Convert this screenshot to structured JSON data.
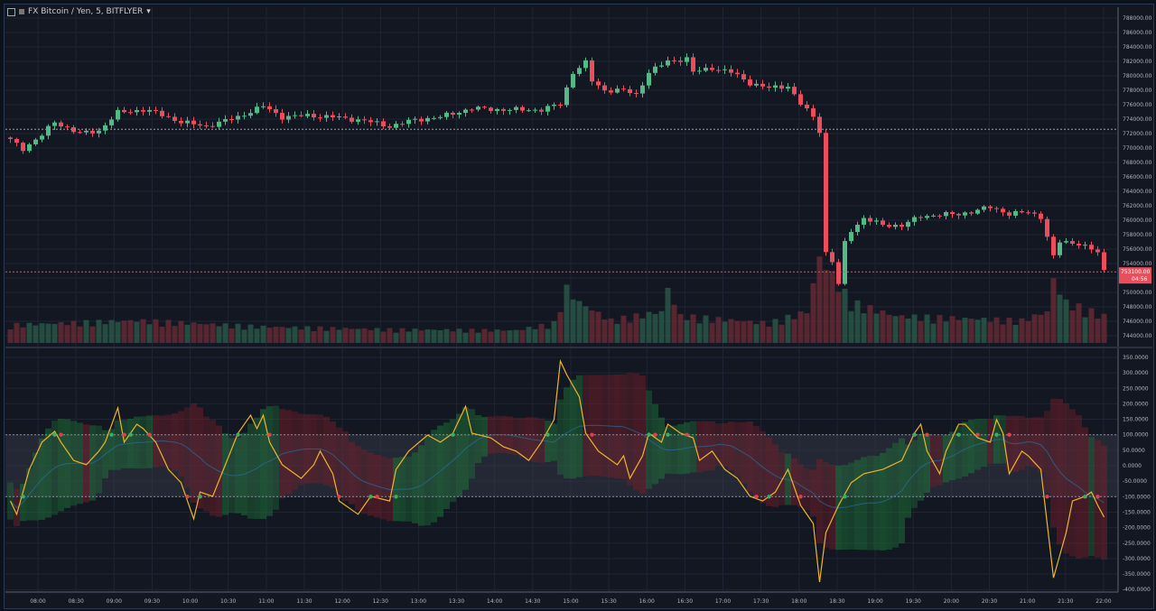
{
  "header": {
    "symbol_title": "FX Bitcoin / Yen, 5, BITFLYER",
    "dropdown_glyph": "▾"
  },
  "price_axis": {
    "labels": [
      "788000.00",
      "786000.00",
      "784000.00",
      "782000.00",
      "780000.00",
      "778000.00",
      "776000.00",
      "774000.00",
      "772000.00",
      "770000.00",
      "768000.00",
      "766000.00",
      "764000.00",
      "762000.00",
      "760000.00",
      "758000.00",
      "756000.00",
      "754000.00",
      "752000.00",
      "750000.00",
      "748000.00",
      "746000.00",
      "744000.00"
    ],
    "current_price": "753100.00",
    "countdown": "04:56",
    "reference_line_price": 772600
  },
  "osc_axis": {
    "labels": [
      "350.0000",
      "300.0000",
      "250.0000",
      "200.0000",
      "150.0000",
      "100.0000",
      "50.0000",
      "0.0000",
      "-50.0000",
      "-100.0000",
      "-150.0000",
      "-200.0000",
      "-250.0000",
      "-300.0000",
      "-350.0000",
      "-400.0000"
    ]
  },
  "time_axis": {
    "labels": [
      "08:00",
      "08:30",
      "09:00",
      "09:30",
      "10:00",
      "10:30",
      "11:00",
      "11:30",
      "12:00",
      "12:30",
      "13:00",
      "13:30",
      "14:00",
      "14:30",
      "15:00",
      "15:30",
      "16:00",
      "16:30",
      "17:00",
      "17:30",
      "18:00",
      "18:30",
      "19:00",
      "19:30",
      "20:00",
      "20:30",
      "21:00",
      "21:30",
      "22:00"
    ]
  },
  "colors": {
    "up": "#53b987",
    "down": "#eb4d5c",
    "osc_line": "#f0b429",
    "bg": "#131722",
    "grid": "#1f2535"
  },
  "chart_data": {
    "type": "candlestick+oscillator",
    "title": "FX Bitcoin / Yen, 5, BITFLYER",
    "interval_minutes": 5,
    "bars": 174,
    "close_keypoints": [
      [
        0,
        771100
      ],
      [
        2,
        769900
      ],
      [
        5,
        771800
      ],
      [
        7,
        773600
      ],
      [
        11,
        772000
      ],
      [
        14,
        772400
      ],
      [
        17,
        774900
      ],
      [
        21,
        775300
      ],
      [
        23,
        774900
      ],
      [
        27,
        773600
      ],
      [
        31,
        773000
      ],
      [
        36,
        774300
      ],
      [
        40,
        775800
      ],
      [
        43,
        774300
      ],
      [
        47,
        774500
      ],
      [
        51,
        774300
      ],
      [
        56,
        773800
      ],
      [
        60,
        773000
      ],
      [
        64,
        773900
      ],
      [
        68,
        774300
      ],
      [
        73,
        775500
      ],
      [
        78,
        775300
      ],
      [
        84,
        775300
      ],
      [
        87,
        776100
      ],
      [
        89,
        780500
      ],
      [
        91,
        781800
      ],
      [
        92,
        779300
      ],
      [
        94,
        778000
      ],
      [
        97,
        778000
      ],
      [
        99,
        777400
      ],
      [
        101,
        780500
      ],
      [
        104,
        782000
      ],
      [
        107,
        782400
      ],
      [
        108,
        780500
      ],
      [
        111,
        781100
      ],
      [
        114,
        780500
      ],
      [
        117,
        779000
      ],
      [
        120,
        778300
      ],
      [
        123,
        778600
      ],
      [
        125,
        776100
      ],
      [
        127,
        774300
      ],
      [
        128,
        772400
      ],
      [
        129,
        755500
      ],
      [
        130,
        754300
      ],
      [
        131,
        751100
      ],
      [
        132,
        756800
      ],
      [
        133,
        758600
      ],
      [
        135,
        760300
      ],
      [
        138,
        759300
      ],
      [
        141,
        759300
      ],
      [
        144,
        760500
      ],
      [
        147,
        760800
      ],
      [
        150,
        760800
      ],
      [
        153,
        761400
      ],
      [
        155,
        761800
      ],
      [
        158,
        760900
      ],
      [
        161,
        761100
      ],
      [
        163,
        760500
      ],
      [
        165,
        754900
      ],
      [
        166,
        757000
      ],
      [
        169,
        756800
      ],
      [
        172,
        755500
      ],
      [
        173,
        753100
      ]
    ],
    "volume_keypoints": [
      [
        0,
        20
      ],
      [
        20,
        25
      ],
      [
        40,
        18
      ],
      [
        60,
        15
      ],
      [
        80,
        14
      ],
      [
        86,
        22
      ],
      [
        88,
        60
      ],
      [
        90,
        45
      ],
      [
        95,
        25
      ],
      [
        103,
        35
      ],
      [
        104,
        60
      ],
      [
        106,
        30
      ],
      [
        120,
        22
      ],
      [
        126,
        35
      ],
      [
        128,
        95
      ],
      [
        130,
        75
      ],
      [
        133,
        45
      ],
      [
        140,
        30
      ],
      [
        160,
        25
      ],
      [
        164,
        35
      ],
      [
        165,
        70
      ],
      [
        167,
        45
      ],
      [
        173,
        30
      ]
    ],
    "osc_keypoints": [
      [
        0,
        -114
      ],
      [
        1,
        -157
      ],
      [
        3,
        -12
      ],
      [
        5,
        76
      ],
      [
        7,
        111
      ],
      [
        8,
        76
      ],
      [
        10,
        17
      ],
      [
        12,
        3
      ],
      [
        14,
        47
      ],
      [
        15,
        76
      ],
      [
        17,
        187
      ],
      [
        18,
        76
      ],
      [
        20,
        134
      ],
      [
        21,
        120
      ],
      [
        23,
        76
      ],
      [
        25,
        -12
      ],
      [
        27,
        -55
      ],
      [
        29,
        -172
      ],
      [
        30,
        -85
      ],
      [
        32,
        -99
      ],
      [
        34,
        3
      ],
      [
        36,
        105
      ],
      [
        38,
        163
      ],
      [
        39,
        120
      ],
      [
        40,
        163
      ],
      [
        41,
        76
      ],
      [
        43,
        3
      ],
      [
        46,
        -41
      ],
      [
        48,
        3
      ],
      [
        49,
        47
      ],
      [
        51,
        -26
      ],
      [
        52,
        -114
      ],
      [
        55,
        -157
      ],
      [
        57,
        -99
      ],
      [
        60,
        -114
      ],
      [
        61,
        -12
      ],
      [
        63,
        47
      ],
      [
        66,
        99
      ],
      [
        68,
        76
      ],
      [
        70,
        105
      ],
      [
        72,
        192
      ],
      [
        73,
        105
      ],
      [
        76,
        90
      ],
      [
        78,
        61
      ],
      [
        80,
        47
      ],
      [
        82,
        17
      ],
      [
        84,
        76
      ],
      [
        86,
        149
      ],
      [
        87,
        338
      ],
      [
        88,
        294
      ],
      [
        90,
        222
      ],
      [
        91,
        105
      ],
      [
        93,
        47
      ],
      [
        96,
        3
      ],
      [
        97,
        32
      ],
      [
        98,
        -41
      ],
      [
        100,
        32
      ],
      [
        101,
        105
      ],
      [
        103,
        76
      ],
      [
        104,
        134
      ],
      [
        106,
        105
      ],
      [
        108,
        90
      ],
      [
        109,
        17
      ],
      [
        111,
        47
      ],
      [
        113,
        -12
      ],
      [
        115,
        -41
      ],
      [
        117,
        -99
      ],
      [
        119,
        -114
      ],
      [
        121,
        -85
      ],
      [
        123,
        -12
      ],
      [
        125,
        -128
      ],
      [
        127,
        -187
      ],
      [
        128,
        -376
      ],
      [
        129,
        -216
      ],
      [
        131,
        -128
      ],
      [
        133,
        -55
      ],
      [
        135,
        -26
      ],
      [
        138,
        -12
      ],
      [
        141,
        17
      ],
      [
        143,
        105
      ],
      [
        144,
        134
      ],
      [
        145,
        47
      ],
      [
        147,
        -26
      ],
      [
        148,
        47
      ],
      [
        150,
        134
      ],
      [
        151,
        134
      ],
      [
        153,
        90
      ],
      [
        155,
        76
      ],
      [
        156,
        149
      ],
      [
        157,
        105
      ],
      [
        158,
        -26
      ],
      [
        160,
        47
      ],
      [
        161,
        32
      ],
      [
        163,
        -12
      ],
      [
        164,
        -187
      ],
      [
        165,
        -362
      ],
      [
        167,
        -216
      ],
      [
        168,
        -114
      ],
      [
        170,
        -99
      ],
      [
        171,
        -85
      ],
      [
        172,
        -128
      ],
      [
        173,
        -166
      ]
    ],
    "osc_levels": [
      100,
      -100
    ],
    "price_range": [
      744000,
      788000
    ],
    "osc_range": [
      -400,
      350
    ]
  }
}
